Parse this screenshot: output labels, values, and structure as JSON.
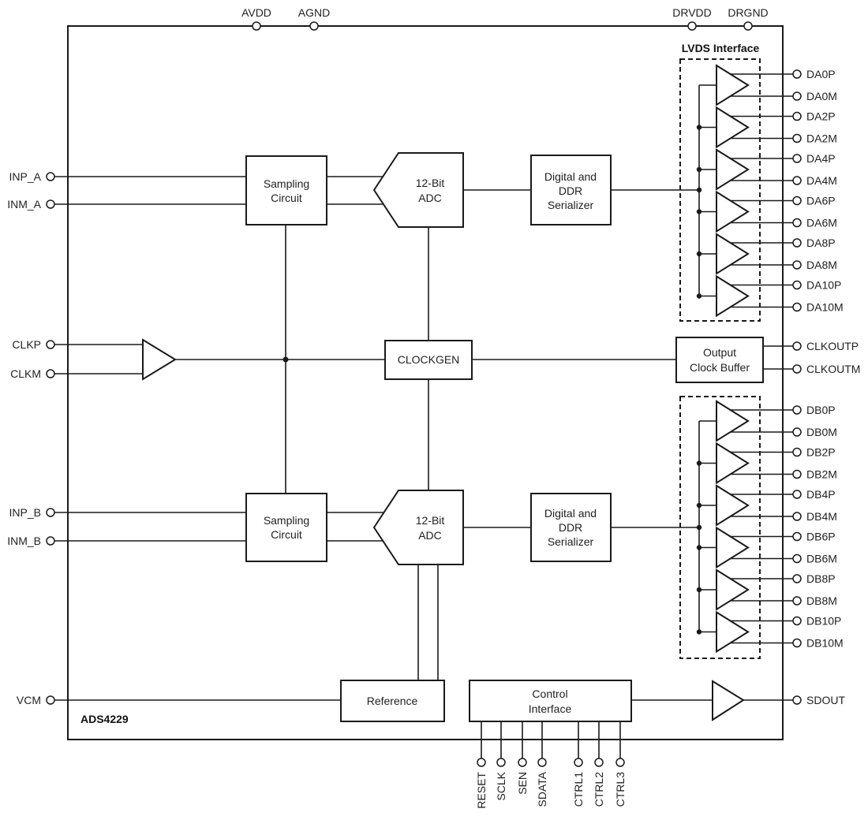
{
  "device_name": "ADS4229",
  "top_pins": [
    "AVDD",
    "AGND",
    "DRVDD",
    "DRGND"
  ],
  "left_pins": {
    "inp_a": "INP_A",
    "inm_a": "INM_A",
    "clkp": "CLKP",
    "clkm": "CLKM",
    "inp_b": "INP_B",
    "inm_b": "INM_B",
    "vcm": "VCM"
  },
  "blocks": {
    "sampling_a": [
      "Sampling",
      "Circuit"
    ],
    "sampling_b": [
      "Sampling",
      "Circuit"
    ],
    "adc_a": [
      "12-Bit",
      "ADC"
    ],
    "adc_b": [
      "12-Bit",
      "ADC"
    ],
    "serializer_a": [
      "Digital and",
      "DDR",
      "Serializer"
    ],
    "serializer_b": [
      "Digital and",
      "DDR",
      "Serializer"
    ],
    "clockgen": "CLOCKGEN",
    "output_clock_buffer": [
      "Output",
      "Clock Buffer"
    ],
    "reference": "Reference",
    "control_interface": [
      "Control",
      "Interface"
    ],
    "lvds_interface": "LVDS Interface"
  },
  "lvds_a_pins": [
    "DA0P",
    "DA0M",
    "DA2P",
    "DA2M",
    "DA4P",
    "DA4M",
    "DA6P",
    "DA6M",
    "DA8P",
    "DA8M",
    "DA10P",
    "DA10M"
  ],
  "lvds_b_pins": [
    "DB0P",
    "DB0M",
    "DB2P",
    "DB2M",
    "DB4P",
    "DB4M",
    "DB6P",
    "DB6M",
    "DB8P",
    "DB8M",
    "DB10P",
    "DB10M"
  ],
  "clock_out_pins": [
    "CLKOUTP",
    "CLKOUTM"
  ],
  "sdout_pin": "SDOUT",
  "bottom_pins": [
    "RESET",
    "SCLK",
    "SEN",
    "SDATA",
    "CTRL1",
    "CTRL2",
    "CTRL3"
  ]
}
